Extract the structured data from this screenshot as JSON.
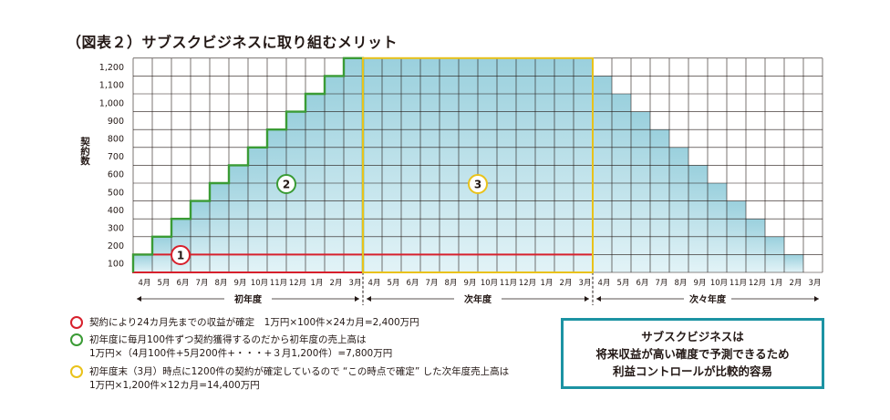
{
  "title": "（図表２）サブスクビジネスに取り組むメリット",
  "chart_data": {
    "type": "bar",
    "ylabel": "契約数",
    "yticks": [
      "100",
      "200",
      "300",
      "400",
      "500",
      "600",
      "700",
      "800",
      "900",
      "1,000",
      "1,100",
      "1,200"
    ],
    "ylim": [
      0,
      1200
    ],
    "months": [
      "4月",
      "5月",
      "6月",
      "7月",
      "8月",
      "9月",
      "10月",
      "11月",
      "12月",
      "1月",
      "2月",
      "3月",
      "4月",
      "5月",
      "6月",
      "7月",
      "8月",
      "9月",
      "10月",
      "11月",
      "12月",
      "1月",
      "2月",
      "3月",
      "4月",
      "5月",
      "6月",
      "7月",
      "8月",
      "9月",
      "10月",
      "11月",
      "12月",
      "1月",
      "2月",
      "3月"
    ],
    "periods": [
      "初年度",
      "次年度",
      "次々年度"
    ],
    "values": [
      100,
      200,
      300,
      400,
      500,
      600,
      700,
      800,
      900,
      1000,
      1100,
      1200,
      1200,
      1200,
      1200,
      1200,
      1200,
      1200,
      1200,
      1200,
      1200,
      1200,
      1200,
      1200,
      1100,
      1000,
      900,
      800,
      700,
      600,
      500,
      400,
      300,
      200,
      100,
      0
    ],
    "markers": [
      "1",
      "2",
      "3"
    ],
    "colors": {
      "red": "#d7202c",
      "green": "#3a9b35",
      "yellow": "#e9c21a",
      "fill_top": "#9ad0dd",
      "fill_bottom": "#e2f3f7",
      "border": "#1c93a3"
    }
  },
  "legend": [
    {
      "color": "red",
      "lines": [
        "契約により24カ月先までの収益が確定　1万円×100件×24カ月=2,400万円"
      ]
    },
    {
      "color": "green",
      "lines": [
        "初年度に毎月100件ずつ契約獲得するのだから初年度の売上高は",
        "1万円×（4月100件+5月200件+・・・+３月1,200件）=7,800万円"
      ]
    },
    {
      "color": "yellow",
      "lines": [
        "初年度末（3月）時点に1200件の契約が確定しているので “この時点で確定” した次年度売上高は",
        "1万円×1,200件×12カ月=14,400万円"
      ]
    }
  ],
  "callout": [
    "サブスクビジネスは",
    "将来収益が高い確度で予測できるため",
    "利益コントロールが比較的容易"
  ]
}
